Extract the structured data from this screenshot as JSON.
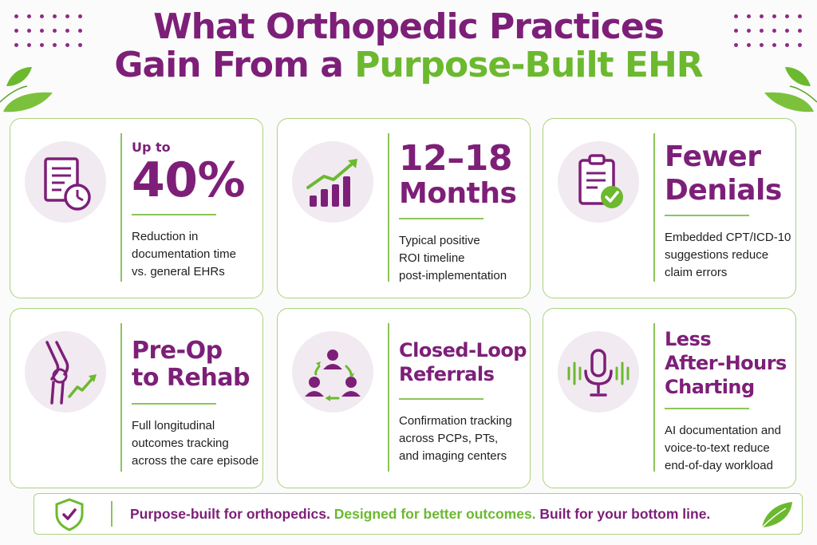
{
  "title": {
    "line1": "What Orthopedic Practices",
    "line2_prefix": "Gain From a ",
    "line2_accent": "Purpose-Built EHR"
  },
  "cards": [
    {
      "icon": "document-clock-icon",
      "kicker": "Up to",
      "big": "40%",
      "desc_lines": [
        "Reduction in",
        "documentation time",
        "vs. general EHRs"
      ]
    },
    {
      "icon": "growth-chart-icon",
      "big_lines": [
        "12–18",
        "Months"
      ],
      "desc_lines": [
        "Typical positive",
        "ROI timeline",
        "post-implementation"
      ]
    },
    {
      "icon": "clipboard-check-icon",
      "big_lines": [
        "Fewer",
        "Denials"
      ],
      "desc_lines": [
        "Embedded CPT/ICD-10",
        "suggestions reduce",
        "claim errors"
      ]
    },
    {
      "icon": "knee-trend-icon",
      "big_lines": [
        "Pre-Op",
        "to Rehab"
      ],
      "desc_lines": [
        "Full longitudinal",
        "outcomes tracking",
        "across the care episode"
      ]
    },
    {
      "icon": "referral-loop-icon",
      "big_lines": [
        "Closed-Loop",
        "Referrals"
      ],
      "desc_lines": [
        "Confirmation tracking",
        "across PCPs, PTs,",
        "and imaging centers"
      ]
    },
    {
      "icon": "microphone-icon",
      "big_lines": [
        "Less",
        "After-Hours",
        "Charting"
      ],
      "desc_lines": [
        "AI documentation and",
        "voice-to-text reduce",
        "end-of-day workload"
      ]
    }
  ],
  "banner": {
    "icon": "shield-check-icon",
    "part1": "Purpose-built for orthopedics.",
    "part2": "Designed for better outcomes.",
    "part3": "Built for your bottom line."
  },
  "colors": {
    "purple": "#7d1f78",
    "green": "#6cb92f",
    "border_green": "#a9d37d"
  }
}
